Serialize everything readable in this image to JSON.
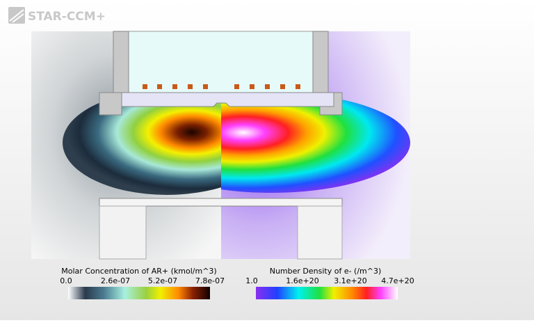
{
  "logo": "STAR-CCM+",
  "legends": [
    {
      "title": "Molar Concentration of AR+ (kmol/m^3)",
      "ticks": [
        "0.0",
        "2.6e-07",
        "5.2e-07",
        "7.8e-07"
      ]
    },
    {
      "title": "Number Density of e- (/m^3)",
      "ticks": [
        "1.0",
        "1.6e+20",
        "3.1e+20",
        "4.7e+20"
      ]
    }
  ]
}
